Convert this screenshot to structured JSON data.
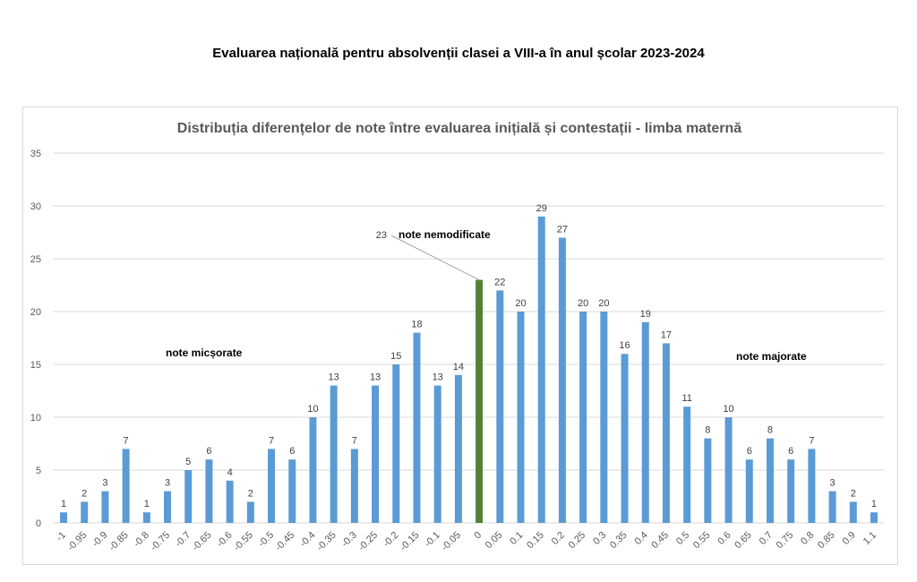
{
  "page_title": "Evaluarea națională pentru absolvenții clasei a VIII-a în anul școlar 2023-2024",
  "chart_data": {
    "type": "bar",
    "title": "Distribuția diferențelor de note între evaluarea inițială și contestații - limba maternă",
    "xlabel": "",
    "ylabel": "",
    "ylim": [
      0,
      35
    ],
    "yticks": [
      0,
      5,
      10,
      15,
      20,
      25,
      30,
      35
    ],
    "grid": true,
    "categories": [
      "-1",
      "-0.95",
      "-0.9",
      "-0.85",
      "-0.8",
      "-0.75",
      "-0.7",
      "-0.65",
      "-0.6",
      "-0.55",
      "-0.5",
      "-0.45",
      "-0.4",
      "-0.35",
      "-0.3",
      "-0.25",
      "-0.2",
      "-0.15",
      "-0.1",
      "-0.05",
      "0",
      "0.05",
      "0.1",
      "0.15",
      "0.2",
      "0.25",
      "0.3",
      "0.35",
      "0.4",
      "0.45",
      "0.5",
      "0.55",
      "0.6",
      "0.65",
      "0.7",
      "0.75",
      "0.8",
      "0.85",
      "0.9",
      "1.1"
    ],
    "values": [
      1,
      2,
      3,
      7,
      1,
      3,
      5,
      6,
      4,
      2,
      7,
      6,
      10,
      13,
      7,
      13,
      15,
      18,
      13,
      14,
      23,
      22,
      20,
      29,
      27,
      20,
      20,
      16,
      19,
      17,
      11,
      8,
      10,
      6,
      8,
      6,
      7,
      3,
      2,
      1
    ],
    "highlight_category": "0",
    "colors": {
      "bar": "#5b9bd5",
      "highlight": "#548235",
      "grid": "#d9d9d9",
      "text": "#595959"
    },
    "annotations": {
      "decreased": "note micșorate",
      "unchanged": "note nemodificate",
      "increased": "note majorate"
    }
  }
}
